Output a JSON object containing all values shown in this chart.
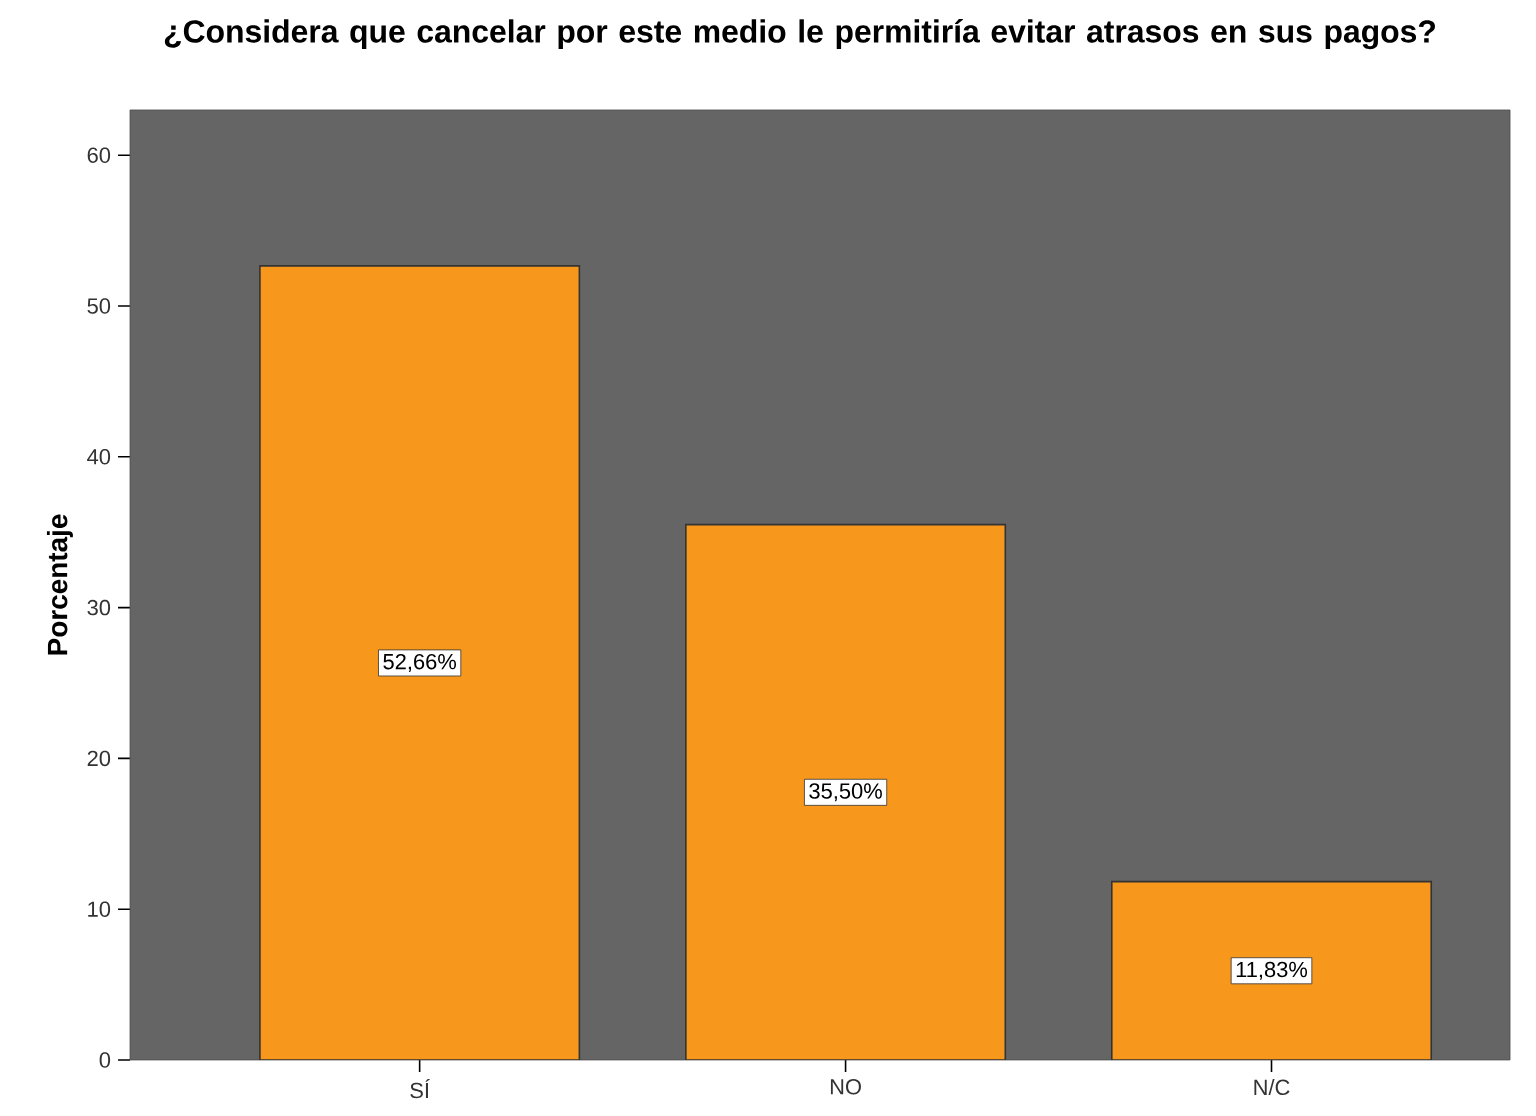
{
  "chart_data": {
    "type": "bar",
    "title": "¿Considera que cancelar por este medio le permitiría evitar atrasos en sus pagos?",
    "ylabel": "Porcentaje",
    "categories": [
      "SÍ",
      "NO",
      "N/C"
    ],
    "values": [
      52.66,
      35.5,
      11.83
    ],
    "value_labels": [
      "52,66%",
      "35,50%",
      "11,83%"
    ],
    "color": "#f7981d",
    "ylim": [
      0,
      63
    ],
    "yticks": [
      0,
      10,
      20,
      30,
      40,
      50,
      60
    ],
    "grid": false
  }
}
